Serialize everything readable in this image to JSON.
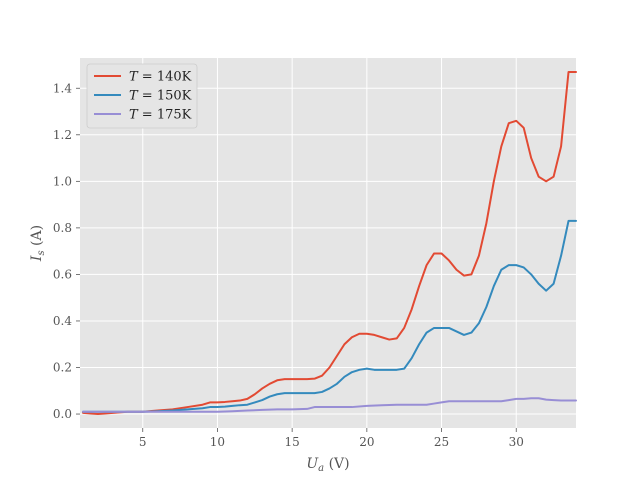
{
  "chart_data": {
    "type": "line",
    "title": "",
    "xlabel": "U_a (V)",
    "ylabel": "I_s (A)",
    "xlim": [
      0.8,
      34
    ],
    "ylim": [
      -0.06,
      1.53
    ],
    "xticks": [
      5,
      10,
      15,
      20,
      25,
      30
    ],
    "yticks": [
      0.0,
      0.2,
      0.4,
      0.6,
      0.8,
      1.0,
      1.2,
      1.4
    ],
    "xtick_labels": [
      "5",
      "10",
      "15",
      "20",
      "25",
      "30"
    ],
    "ytick_labels": [
      "0.0",
      "0.2",
      "0.4",
      "0.6",
      "0.8",
      "1.0",
      "1.2",
      "1.4"
    ],
    "grid": true,
    "legend_position": "top-left",
    "background": "#e5e5e5",
    "series": [
      {
        "name": "T = 140K",
        "color": "#e24a33",
        "x": [
          1,
          2,
          3,
          4,
          5,
          6,
          7,
          8,
          9,
          9.5,
          10,
          10.5,
          11,
          11.5,
          12,
          12.5,
          13,
          13.5,
          14,
          14.5,
          15,
          15.5,
          16,
          16.5,
          17,
          17.5,
          18,
          18.5,
          19,
          19.5,
          20,
          20.5,
          21,
          21.5,
          22,
          22.5,
          23,
          23.5,
          24,
          24.5,
          25,
          25.5,
          26,
          26.5,
          27,
          27.5,
          28,
          28.5,
          29,
          29.5,
          30,
          30.5,
          31,
          31.5,
          32,
          32.5,
          33,
          33.5,
          34
        ],
        "y": [
          0.005,
          0.0,
          0.005,
          0.01,
          0.01,
          0.015,
          0.02,
          0.03,
          0.04,
          0.05,
          0.05,
          0.052,
          0.055,
          0.058,
          0.065,
          0.085,
          0.11,
          0.13,
          0.145,
          0.15,
          0.15,
          0.15,
          0.15,
          0.152,
          0.165,
          0.2,
          0.25,
          0.3,
          0.33,
          0.345,
          0.345,
          0.34,
          0.33,
          0.32,
          0.325,
          0.37,
          0.45,
          0.55,
          0.64,
          0.69,
          0.69,
          0.66,
          0.62,
          0.595,
          0.6,
          0.68,
          0.82,
          1.0,
          1.15,
          1.25,
          1.26,
          1.23,
          1.1,
          1.02,
          1.0,
          1.02,
          1.15,
          1.47,
          1.47
        ]
      },
      {
        "name": "T = 150K",
        "color": "#348abd",
        "x": [
          1,
          2,
          3,
          4,
          5,
          6,
          7,
          8,
          9,
          9.5,
          10,
          10.5,
          11,
          11.5,
          12,
          12.5,
          13,
          13.5,
          14,
          14.5,
          15,
          15.5,
          16,
          16.5,
          17,
          17.5,
          18,
          18.5,
          19,
          19.5,
          20,
          20.5,
          21,
          21.5,
          22,
          22.5,
          23,
          23.5,
          24,
          24.5,
          25,
          25.5,
          26,
          26.5,
          27,
          27.5,
          28,
          28.5,
          29,
          29.5,
          30,
          30.5,
          31,
          31.5,
          32,
          32.5,
          33,
          33.5,
          34
        ],
        "y": [
          0.01,
          0.01,
          0.01,
          0.01,
          0.01,
          0.012,
          0.015,
          0.02,
          0.025,
          0.03,
          0.03,
          0.032,
          0.035,
          0.038,
          0.04,
          0.05,
          0.06,
          0.075,
          0.085,
          0.09,
          0.09,
          0.09,
          0.09,
          0.09,
          0.095,
          0.11,
          0.13,
          0.16,
          0.18,
          0.19,
          0.195,
          0.19,
          0.19,
          0.19,
          0.19,
          0.195,
          0.24,
          0.3,
          0.35,
          0.37,
          0.37,
          0.37,
          0.355,
          0.34,
          0.35,
          0.39,
          0.46,
          0.55,
          0.62,
          0.64,
          0.64,
          0.63,
          0.6,
          0.56,
          0.53,
          0.56,
          0.68,
          0.83,
          0.83
        ]
      },
      {
        "name": "T = 175K",
        "color": "#988ed5",
        "x": [
          1,
          2,
          3,
          4,
          5,
          6,
          7,
          8,
          9,
          10,
          11,
          12,
          13,
          14,
          15,
          16,
          16.5,
          17,
          18,
          19,
          20,
          21,
          22,
          23,
          24,
          24.5,
          25,
          25.5,
          26,
          26.5,
          27,
          27.5,
          28,
          28.5,
          29,
          29.5,
          30,
          30.5,
          31,
          31.5,
          32,
          32.5,
          33,
          33.5,
          34
        ],
        "y": [
          0.01,
          0.01,
          0.01,
          0.01,
          0.01,
          0.01,
          0.01,
          0.01,
          0.01,
          0.01,
          0.012,
          0.015,
          0.018,
          0.02,
          0.02,
          0.022,
          0.03,
          0.03,
          0.03,
          0.03,
          0.035,
          0.038,
          0.04,
          0.04,
          0.04,
          0.045,
          0.05,
          0.055,
          0.055,
          0.055,
          0.055,
          0.055,
          0.055,
          0.055,
          0.055,
          0.06,
          0.065,
          0.065,
          0.068,
          0.068,
          0.062,
          0.06,
          0.058,
          0.058,
          0.058
        ]
      }
    ]
  }
}
